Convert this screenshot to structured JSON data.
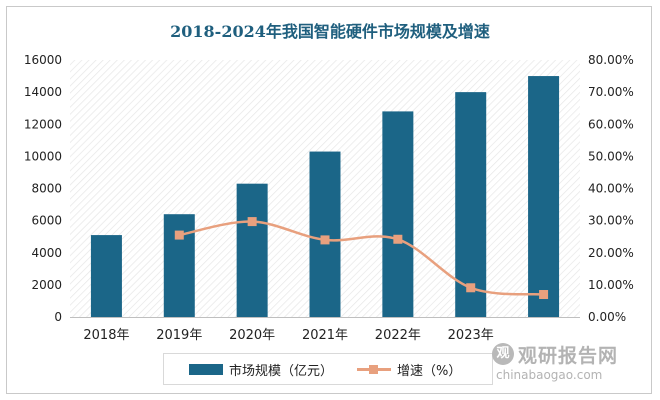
{
  "chart_data": {
    "type": "bar",
    "title": "2018-2024年我国智能硬件市场规模及增速",
    "categories": [
      "2018年",
      "2019年",
      "2020年",
      "2021年",
      "2022年",
      "2023年",
      ""
    ],
    "series": [
      {
        "name": "市场规模（亿元）",
        "type": "bar",
        "axis": "left",
        "values": [
          5100,
          6400,
          8300,
          10300,
          12800,
          14000,
          15000
        ]
      },
      {
        "name": "增速（%）",
        "type": "line",
        "axis": "right",
        "values": [
          null,
          25.5,
          29.7,
          24.0,
          24.2,
          9.1,
          7.0
        ]
      }
    ],
    "y_left": {
      "min": 0,
      "max": 16000,
      "ticks": [
        "0",
        "2000",
        "4000",
        "6000",
        "8000",
        "10000",
        "12000",
        "14000",
        "16000"
      ]
    },
    "y_right": {
      "min": 0,
      "max": 80,
      "ticks": [
        "0.00%",
        "10.00%",
        "20.00%",
        "30.00%",
        "40.00%",
        "50.00%",
        "60.00%",
        "70.00%",
        "80.00%"
      ]
    },
    "legend_position": "bottom",
    "grid": false,
    "colors": {
      "bar": "#1b6688",
      "line": "#e8a07e",
      "title": "#1f5f7e"
    }
  },
  "watermark": {
    "logo_char": "观",
    "name": "观研报告网",
    "url": "chinabaogao.com"
  }
}
